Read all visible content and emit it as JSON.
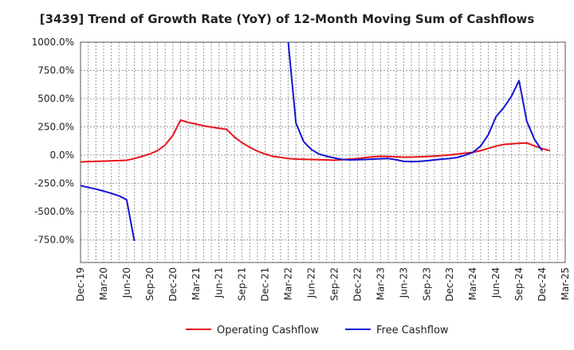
{
  "chart_data": {
    "type": "line",
    "title": "[3439]  Trend of Growth Rate (YoY) of 12-Month Moving Sum of Cashflows",
    "xlabel": "",
    "ylabel": "",
    "ylim": [
      -950,
      1000
    ],
    "grid": true,
    "legend_position": "bottom",
    "y_ticks": [
      "1000.0%",
      "750.0%",
      "500.0%",
      "250.0%",
      "0.0%",
      "-250.0%",
      "-500.0%",
      "-750.0%"
    ],
    "y_tick_values": [
      1000,
      750,
      500,
      250,
      0,
      -250,
      -500,
      -750
    ],
    "x_ticks": [
      "Dec-19",
      "Mar-20",
      "Jun-20",
      "Sep-20",
      "Dec-20",
      "Mar-21",
      "Jun-21",
      "Sep-21",
      "Dec-21",
      "Mar-22",
      "Jun-22",
      "Sep-22",
      "Dec-22",
      "Mar-23",
      "Jun-23",
      "Sep-23",
      "Dec-23",
      "Mar-24",
      "Jun-24",
      "Sep-24",
      "Dec-24",
      "Mar-25"
    ],
    "months": [
      "Dec-19",
      "Jan-20",
      "Feb-20",
      "Mar-20",
      "Apr-20",
      "May-20",
      "Jun-20",
      "Jul-20",
      "Aug-20",
      "Sep-20",
      "Oct-20",
      "Nov-20",
      "Dec-20",
      "Jan-21",
      "Feb-21",
      "Mar-21",
      "Apr-21",
      "May-21",
      "Jun-21",
      "Jul-21",
      "Aug-21",
      "Sep-21",
      "Oct-21",
      "Nov-21",
      "Dec-21",
      "Jan-22",
      "Feb-22",
      "Mar-22",
      "Apr-22",
      "May-22",
      "Jun-22",
      "Jul-22",
      "Aug-22",
      "Sep-22",
      "Oct-22",
      "Nov-22",
      "Dec-22",
      "Jan-23",
      "Feb-23",
      "Mar-23",
      "Apr-23",
      "May-23",
      "Jun-23",
      "Jul-23",
      "Aug-23",
      "Sep-23",
      "Oct-23",
      "Nov-23",
      "Dec-23",
      "Jan-24",
      "Feb-24",
      "Mar-24",
      "Apr-24",
      "May-24",
      "Jun-24",
      "Jul-24",
      "Aug-24",
      "Sep-24",
      "Oct-24",
      "Nov-24",
      "Dec-24",
      "Jan-25",
      "Feb-25",
      "Mar-25"
    ],
    "series": [
      {
        "name": "Operating Cashflow",
        "color": "#e8141b",
        "values": [
          -60,
          -57,
          -55,
          -53,
          -50,
          -48,
          -45,
          -30,
          -10,
          10,
          40,
          90,
          175,
          310,
          290,
          275,
          260,
          248,
          238,
          228,
          160,
          110,
          70,
          35,
          10,
          -10,
          -20,
          -30,
          -35,
          -37,
          -38,
          -40,
          -42,
          -45,
          -40,
          -35,
          -30,
          -22,
          -15,
          -10,
          -12,
          -15,
          -18,
          -17,
          -15,
          -12,
          -8,
          -3,
          2,
          10,
          18,
          25,
          40,
          60,
          80,
          95,
          100,
          105,
          108,
          82,
          58,
          40,
          null,
          null
        ]
      },
      {
        "name": "Free Cashflow",
        "color": "#1414d6",
        "values": [
          -270,
          -285,
          -300,
          -318,
          -338,
          -360,
          -395,
          -760,
          null,
          null,
          null,
          null,
          null,
          null,
          null,
          null,
          null,
          null,
          null,
          null,
          null,
          null,
          null,
          null,
          null,
          null,
          null,
          1000,
          285,
          120,
          50,
          10,
          -10,
          -25,
          -38,
          -42,
          -40,
          -38,
          -35,
          -32,
          -30,
          -40,
          -55,
          -58,
          -55,
          -50,
          -42,
          -35,
          -30,
          -20,
          0,
          25,
          80,
          180,
          340,
          420,
          520,
          660,
          300,
          140,
          40,
          null,
          null,
          null
        ]
      }
    ]
  }
}
